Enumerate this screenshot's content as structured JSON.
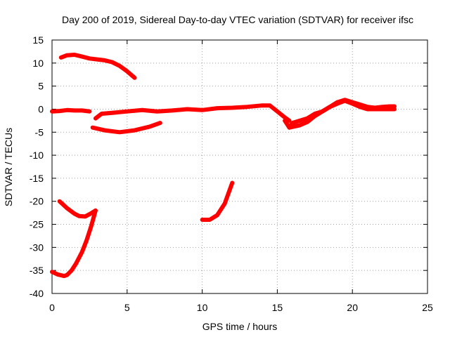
{
  "chart_data": {
    "type": "scatter",
    "title": "Day 200 of 2019, Sidereal Day-to-day VTEC variation (SDTVAR) for receiver ifsc",
    "xlabel": "GPS time / hours",
    "ylabel": "SDTVAR / TECUs",
    "xlim": [
      0,
      25
    ],
    "ylim": [
      -40,
      15
    ],
    "xticks": [
      0,
      5,
      10,
      15,
      20,
      25
    ],
    "yticks": [
      15,
      10,
      5,
      0,
      -5,
      -10,
      -15,
      -20,
      -25,
      -30,
      -35,
      -40
    ],
    "grid": true,
    "legend": false,
    "color": "#ff0000",
    "series": [
      {
        "x": [
          0.6,
          1.0,
          1.5,
          2.0,
          2.5,
          3.0,
          3.5,
          4.0,
          4.5,
          5.0,
          5.5
        ],
        "y": [
          11.2,
          11.7,
          11.8,
          11.4,
          11.0,
          10.8,
          10.6,
          10.2,
          9.4,
          8.2,
          6.8
        ]
      },
      {
        "x": [
          0,
          0.5,
          1.0,
          1.5,
          2.0,
          2.5
        ],
        "y": [
          -0.5,
          -0.4,
          -0.2,
          -0.3,
          -0.3,
          -0.5
        ]
      },
      {
        "x": [
          2.9,
          3.3,
          4.0,
          5.0,
          6.0,
          7.0,
          8.0,
          9.0,
          10.0,
          11.0,
          12.0,
          13.0,
          14.0,
          14.5,
          15.0,
          15.5,
          15.8
        ],
        "y": [
          -2.0,
          -1.0,
          -0.8,
          -0.5,
          -0.2,
          -0.5,
          -0.3,
          0.0,
          -0.2,
          0.2,
          0.3,
          0.5,
          0.8,
          0.8,
          -0.5,
          -1.8,
          -2.5
        ]
      },
      {
        "x": [
          2.7,
          3.5,
          4.5,
          5.5,
          6.5,
          7.2
        ],
        "y": [
          -4.0,
          -4.6,
          -5.0,
          -4.6,
          -3.8,
          -3.0
        ]
      },
      {
        "x": [
          15.5,
          15.8,
          16.0,
          16.5,
          17.0,
          17.5,
          18.0,
          18.5,
          19.0,
          19.5,
          20.0,
          20.5,
          21.0,
          21.5,
          22.0,
          22.5,
          22.8
        ],
        "y": [
          -2.5,
          -4.0,
          -3.0,
          -2.5,
          -2.0,
          -1.0,
          -0.5,
          0.5,
          1.5,
          2.0,
          1.5,
          1.0,
          0.5,
          0.3,
          0.5,
          0.6,
          0.6
        ]
      },
      {
        "x": [
          15.8,
          16.5,
          17.0,
          17.5,
          18.0,
          18.5,
          19.0,
          19.5,
          20.0,
          20.5,
          21.0,
          22.0,
          22.8
        ],
        "y": [
          -4.0,
          -3.5,
          -2.8,
          -1.5,
          -0.5,
          0.5,
          1.2,
          1.8,
          1.2,
          0.5,
          0.0,
          0.0,
          0.0
        ]
      },
      {
        "x": [
          0.5,
          1.0,
          1.5,
          1.8,
          2.2,
          2.5,
          2.7,
          2.9
        ],
        "y": [
          -20.0,
          -21.5,
          -22.7,
          -23.2,
          -23.3,
          -22.8,
          -22.4,
          -22.0
        ]
      },
      {
        "x": [
          0.0,
          0.4,
          0.8,
          1.0,
          1.3,
          1.6,
          2.0,
          2.3,
          2.6,
          2.9
        ],
        "y": [
          -35.3,
          -35.9,
          -36.2,
          -36.0,
          -35.0,
          -33.5,
          -31.0,
          -28.5,
          -25.5,
          -22.0
        ]
      },
      {
        "x": [
          10.0,
          10.5,
          11.0,
          11.5,
          12.0
        ],
        "y": [
          -24.0,
          -24.0,
          -23.0,
          -20.5,
          -16.0
        ]
      }
    ]
  }
}
